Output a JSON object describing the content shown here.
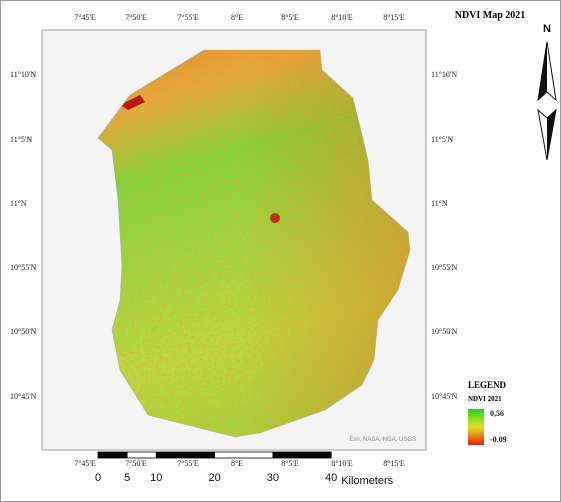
{
  "title": "NDVI Map 2021",
  "north": "N",
  "top_longitudes": [
    "7°45'E",
    "7°50'E",
    "7°55'E",
    "8°E",
    "8°5'E",
    "8°10'E",
    "8°15'E"
  ],
  "bottom_longitudes": [
    "7°45'E",
    "7°50'E",
    "7°55'E",
    "8°E",
    "8°5'E",
    "8°10'E",
    "8°15'E"
  ],
  "left_latitudes": [
    "11°10'N",
    "11°5'N",
    "11°N",
    "10°55'N",
    "10°50'N",
    "10°45'N"
  ],
  "right_latitudes": [
    "11°10'N",
    "11°5'N",
    "11°N",
    "10°55'N",
    "10°50'N",
    "10°45'N"
  ],
  "attribution": "Esri, NASA, NGA, USGS",
  "legend": {
    "heading": "LEGEND",
    "layer": "NDVI 2021",
    "high": "0,56",
    "low": "-0.09"
  },
  "scale_bar": {
    "ticks": [
      0,
      5,
      10,
      20,
      30,
      40
    ],
    "unit": "Kilometers"
  }
}
